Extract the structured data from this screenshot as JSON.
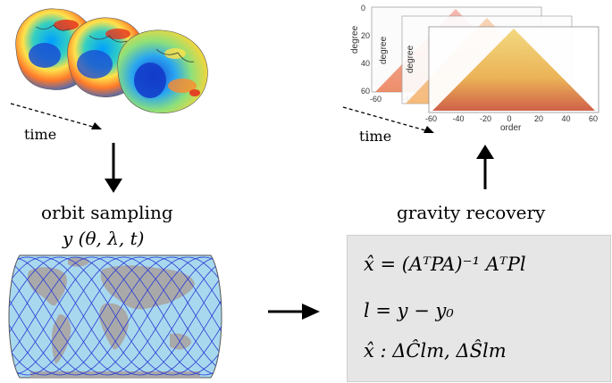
{
  "labels": {
    "time_left": "time",
    "time_right": "time",
    "orbit_sampling": "orbit sampling",
    "orbit_function": "y (θ, λ, t)",
    "gravity_recovery": "gravity recovery"
  },
  "plots": {
    "y_axis_label": "degree",
    "x_axis_label": "order",
    "y_ticks": [
      "0",
      "20",
      "40",
      "60"
    ],
    "x_ticks": [
      "-60",
      "-40",
      "-20",
      "0",
      "20",
      "40",
      "60"
    ],
    "back_x_ticks": [
      "-60",
      "-40",
      "-20"
    ]
  },
  "equations": {
    "eq1": "x̂ = (AᵀPA)⁻¹ AᵀPl",
    "eq2": "l = y − y₀",
    "eq3": "x̂ : ΔĈlm, ΔŜlm"
  },
  "colors": {
    "formula_bg": "#e6e6e6",
    "ocean": "#a8d8ee",
    "land": "#a9a9a9",
    "orbit": "#2b3bd6"
  }
}
